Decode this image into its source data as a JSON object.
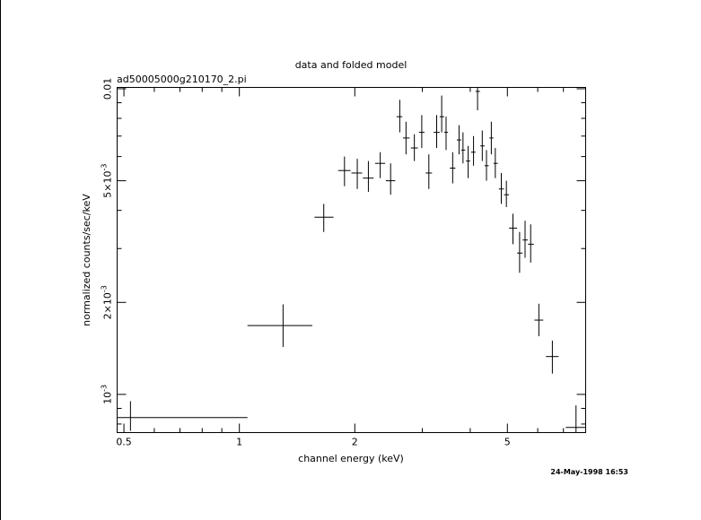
{
  "header": {
    "title": "data and folded model",
    "filename": "ad50005000g210170_2.pi",
    "timestamp": "24-May-1998 16:53"
  },
  "chart_data": {
    "type": "scatter",
    "title": "data and folded model",
    "xlabel": "channel energy (keV)",
    "ylabel": "normalized counts/sec/keV",
    "x_scale": "log",
    "y_scale": "log",
    "xlim": [
      0.48,
      8.0
    ],
    "ylim": [
      0.00075,
      0.0101
    ],
    "x_ticks": [
      {
        "value": 0.5,
        "label": "0.5"
      },
      {
        "value": 1,
        "label": "1"
      },
      {
        "value": 2,
        "label": "2"
      },
      {
        "value": 5,
        "label": "5"
      }
    ],
    "y_ticks": [
      {
        "value": 0.001,
        "base": "10",
        "exp": "-3",
        "mult": ""
      },
      {
        "value": 0.002,
        "base": "2×10",
        "exp": "-3",
        "mult": ""
      },
      {
        "value": 0.005,
        "base": "5×10",
        "exp": "-3",
        "mult": ""
      },
      {
        "value": 0.01,
        "base": "0.01",
        "exp": "",
        "mult": ""
      }
    ],
    "grid": false,
    "points": [
      {
        "x": 0.52,
        "xlo": 0.48,
        "xhi": 1.05,
        "y": 0.00084,
        "ylo": 0.00076,
        "yhi": 0.00095
      },
      {
        "x": 1.3,
        "xlo": 1.05,
        "xhi": 1.55,
        "y": 0.00168,
        "ylo": 0.00143,
        "yhi": 0.00197
      },
      {
        "x": 1.66,
        "xlo": 1.57,
        "xhi": 1.76,
        "y": 0.0038,
        "ylo": 0.0034,
        "yhi": 0.0042
      },
      {
        "x": 1.88,
        "xlo": 1.81,
        "xhi": 1.95,
        "y": 0.0054,
        "ylo": 0.0048,
        "yhi": 0.006
      },
      {
        "x": 2.03,
        "xlo": 1.96,
        "xhi": 2.09,
        "y": 0.0053,
        "ylo": 0.0047,
        "yhi": 0.0059
      },
      {
        "x": 2.17,
        "xlo": 2.1,
        "xhi": 2.24,
        "y": 0.0051,
        "ylo": 0.0046,
        "yhi": 0.0058
      },
      {
        "x": 2.33,
        "xlo": 2.26,
        "xhi": 2.4,
        "y": 0.0057,
        "ylo": 0.0051,
        "yhi": 0.0062
      },
      {
        "x": 2.48,
        "xlo": 2.41,
        "xhi": 2.55,
        "y": 0.005,
        "ylo": 0.0045,
        "yhi": 0.0057
      },
      {
        "x": 2.62,
        "xlo": 2.57,
        "xhi": 2.66,
        "y": 0.0081,
        "ylo": 0.0072,
        "yhi": 0.0092
      },
      {
        "x": 2.72,
        "xlo": 2.67,
        "xhi": 2.78,
        "y": 0.0069,
        "ylo": 0.0061,
        "yhi": 0.0078
      },
      {
        "x": 2.86,
        "xlo": 2.8,
        "xhi": 2.92,
        "y": 0.0064,
        "ylo": 0.0058,
        "yhi": 0.0071
      },
      {
        "x": 2.99,
        "xlo": 2.94,
        "xhi": 3.04,
        "y": 0.0072,
        "ylo": 0.0064,
        "yhi": 0.0082
      },
      {
        "x": 3.12,
        "xlo": 3.06,
        "xhi": 3.18,
        "y": 0.0053,
        "ylo": 0.0047,
        "yhi": 0.0061
      },
      {
        "x": 3.27,
        "xlo": 3.21,
        "xhi": 3.33,
        "y": 0.0072,
        "ylo": 0.0064,
        "yhi": 0.0082
      },
      {
        "x": 3.37,
        "xlo": 3.33,
        "xhi": 3.42,
        "y": 0.0081,
        "ylo": 0.0072,
        "yhi": 0.0095
      },
      {
        "x": 3.46,
        "xlo": 3.42,
        "xhi": 3.5,
        "y": 0.0072,
        "ylo": 0.0063,
        "yhi": 0.0081
      },
      {
        "x": 3.6,
        "xlo": 3.54,
        "xhi": 3.66,
        "y": 0.0055,
        "ylo": 0.0049,
        "yhi": 0.0062
      },
      {
        "x": 3.74,
        "xlo": 3.69,
        "xhi": 3.79,
        "y": 0.0068,
        "ylo": 0.0061,
        "yhi": 0.0076
      },
      {
        "x": 3.83,
        "xlo": 3.79,
        "xhi": 3.88,
        "y": 0.0063,
        "ylo": 0.0057,
        "yhi": 0.0072
      },
      {
        "x": 3.95,
        "xlo": 3.9,
        "xhi": 4.0,
        "y": 0.0058,
        "ylo": 0.0051,
        "yhi": 0.0065
      },
      {
        "x": 4.08,
        "xlo": 4.02,
        "xhi": 4.13,
        "y": 0.0062,
        "ylo": 0.0056,
        "yhi": 0.007
      },
      {
        "x": 4.18,
        "xlo": 4.13,
        "xhi": 4.24,
        "y": 0.0098,
        "ylo": 0.0085,
        "yhi": 0.0101
      },
      {
        "x": 4.3,
        "xlo": 4.25,
        "xhi": 4.36,
        "y": 0.0065,
        "ylo": 0.0058,
        "yhi": 0.0073
      },
      {
        "x": 4.41,
        "xlo": 4.36,
        "xhi": 4.47,
        "y": 0.0056,
        "ylo": 0.005,
        "yhi": 0.0063
      },
      {
        "x": 4.54,
        "xlo": 4.49,
        "xhi": 4.6,
        "y": 0.0069,
        "ylo": 0.0061,
        "yhi": 0.0078
      },
      {
        "x": 4.65,
        "xlo": 4.6,
        "xhi": 4.72,
        "y": 0.0057,
        "ylo": 0.0051,
        "yhi": 0.0064
      },
      {
        "x": 4.82,
        "xlo": 4.75,
        "xhi": 4.9,
        "y": 0.0047,
        "ylo": 0.0042,
        "yhi": 0.0053
      },
      {
        "x": 4.97,
        "xlo": 4.9,
        "xhi": 5.05,
        "y": 0.0045,
        "ylo": 0.0041,
        "yhi": 0.005
      },
      {
        "x": 5.17,
        "xlo": 5.05,
        "xhi": 5.3,
        "y": 0.0035,
        "ylo": 0.0031,
        "yhi": 0.0039
      },
      {
        "x": 5.38,
        "xlo": 5.3,
        "xhi": 5.48,
        "y": 0.0029,
        "ylo": 0.0025,
        "yhi": 0.0034
      },
      {
        "x": 5.56,
        "xlo": 5.48,
        "xhi": 5.65,
        "y": 0.0032,
        "ylo": 0.0028,
        "yhi": 0.0037
      },
      {
        "x": 5.75,
        "xlo": 5.66,
        "xhi": 5.86,
        "y": 0.0031,
        "ylo": 0.0027,
        "yhi": 0.0036
      },
      {
        "x": 6.04,
        "xlo": 5.88,
        "xhi": 6.2,
        "y": 0.00175,
        "ylo": 0.00155,
        "yhi": 0.00198
      },
      {
        "x": 6.55,
        "xlo": 6.3,
        "xhi": 6.8,
        "y": 0.00133,
        "ylo": 0.00117,
        "yhi": 0.0015
      },
      {
        "x": 7.55,
        "xlo": 7.1,
        "xhi": 8.0,
        "y": 0.00078,
        "ylo": 0.00075,
        "yhi": 0.00092
      }
    ]
  }
}
